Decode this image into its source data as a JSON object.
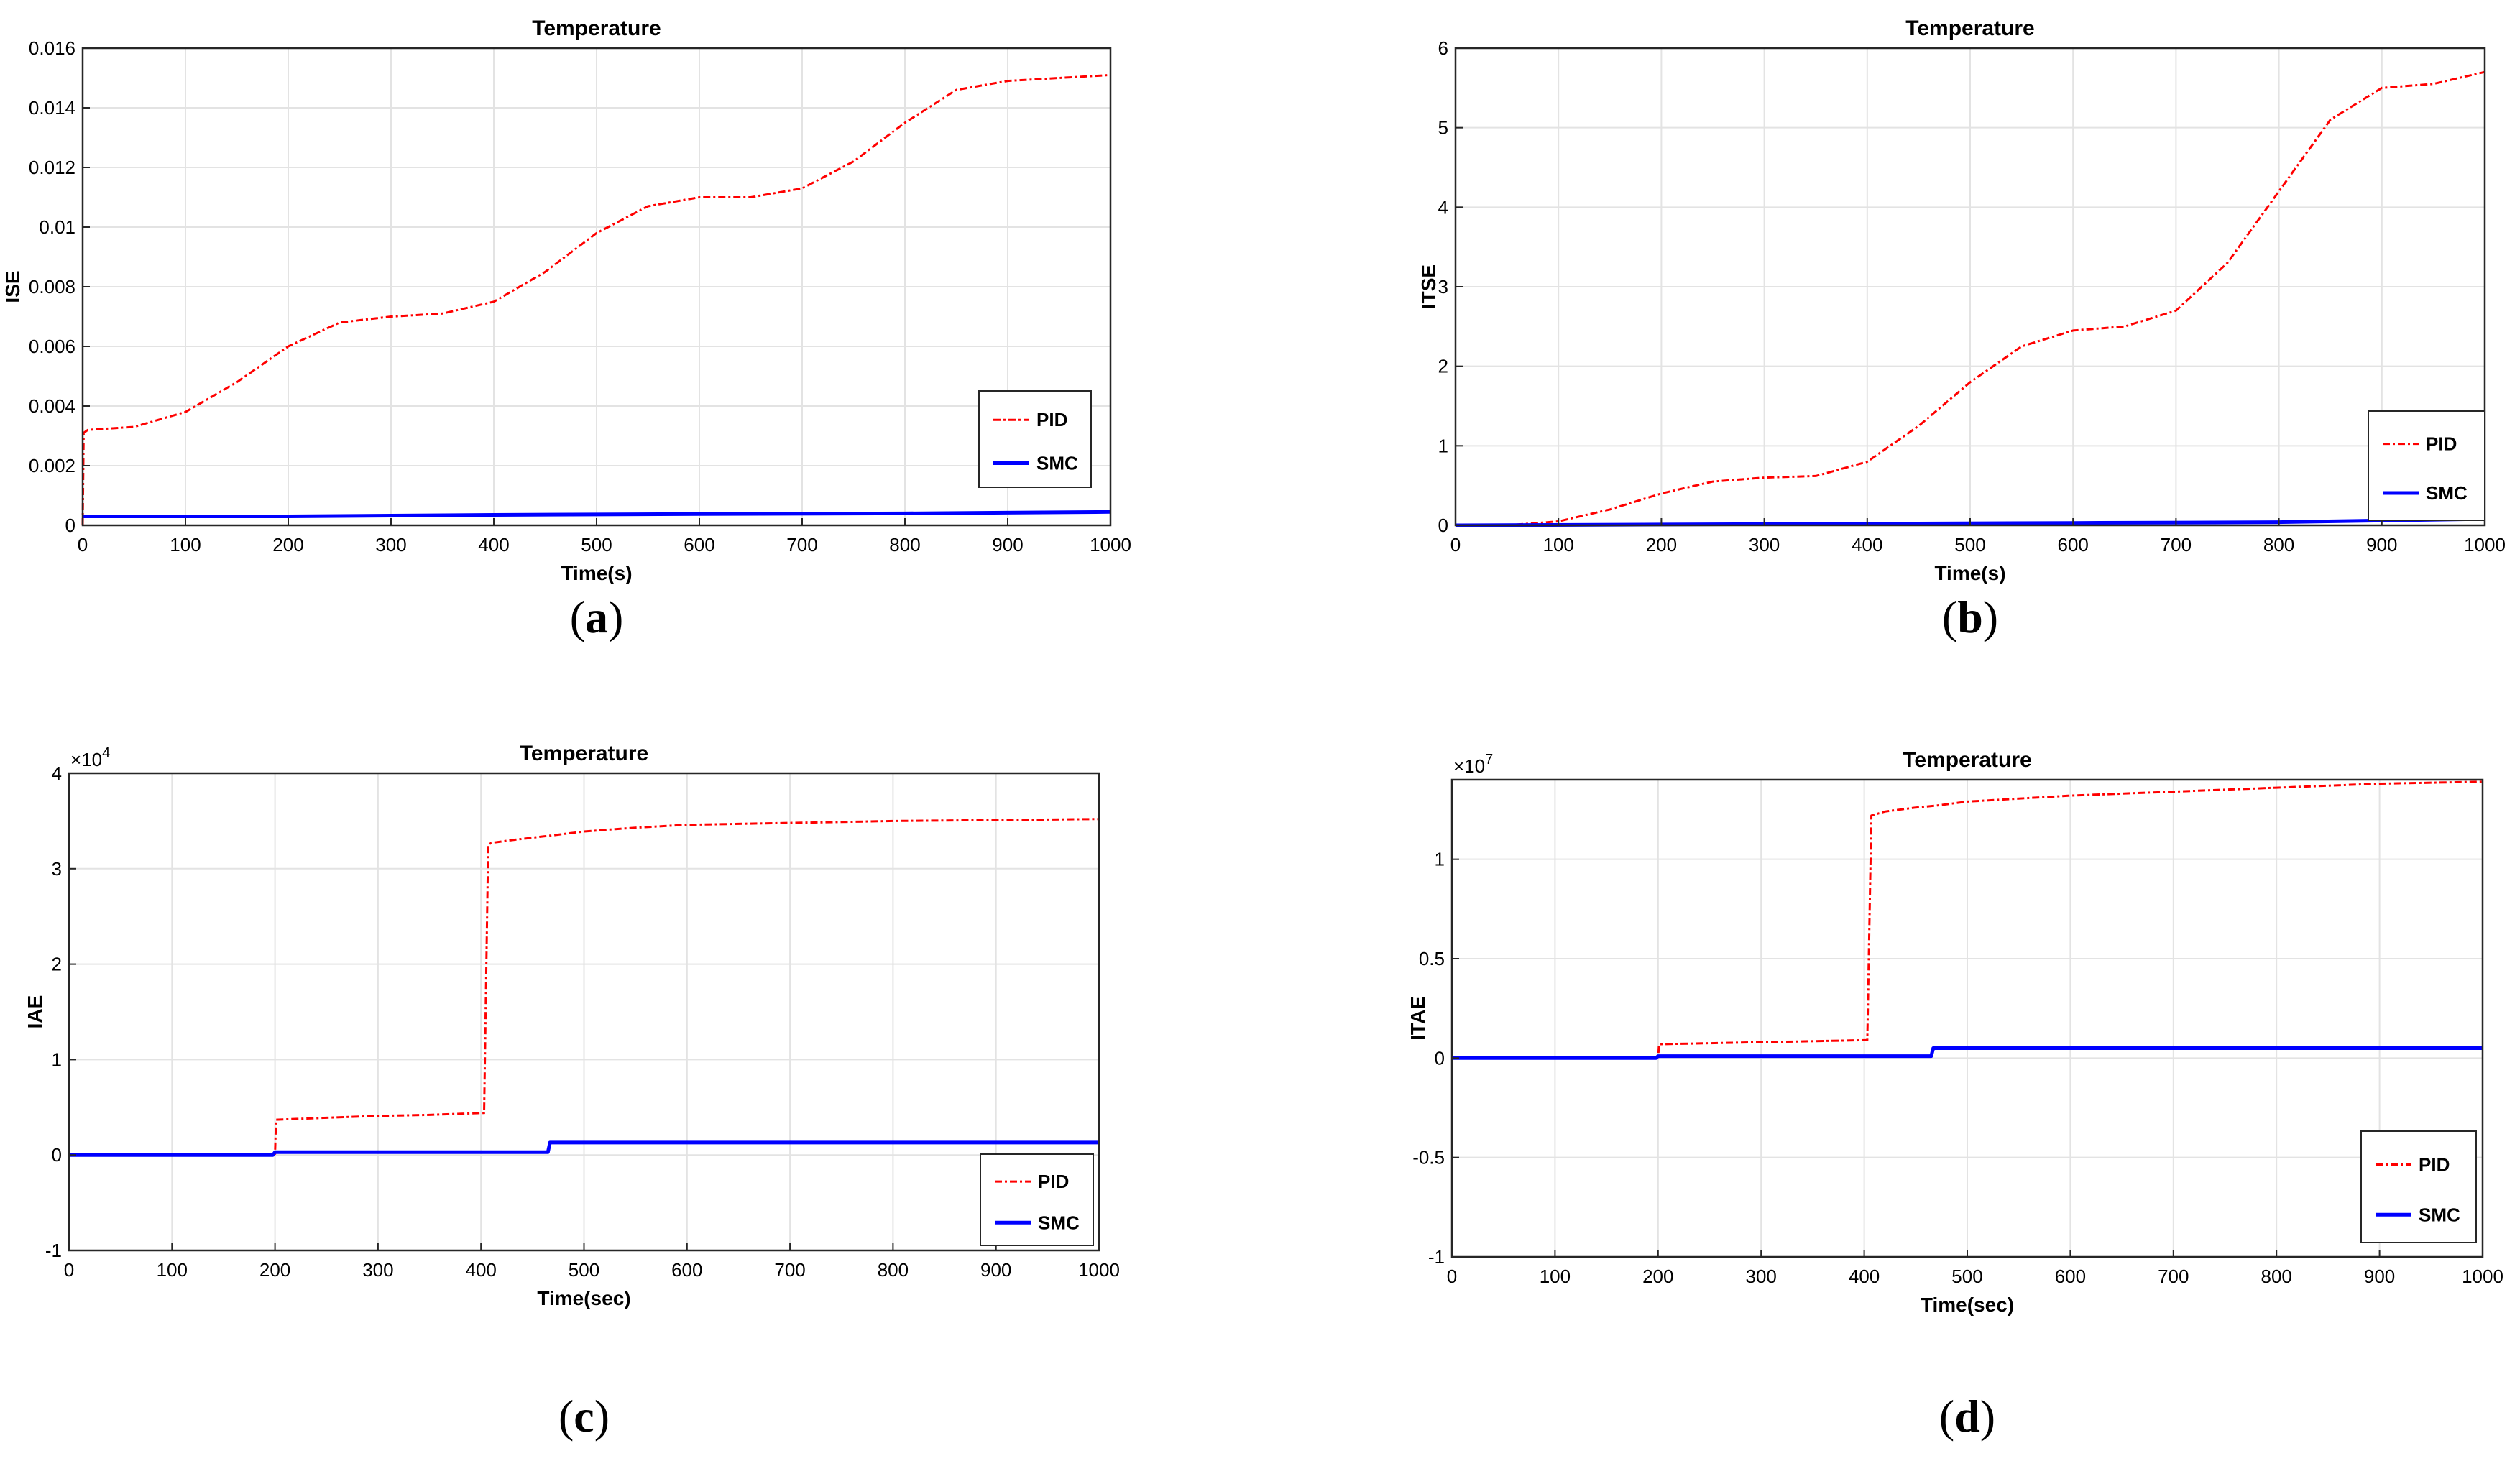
{
  "colors": {
    "pid": "#ff0000",
    "smc": "#0000ff"
  },
  "chart_data": [
    {
      "id": "a",
      "type": "line",
      "caption": "a",
      "title": "Temperature",
      "xlabel": "Time(s)",
      "ylabel": "ISE",
      "xlim": [
        0,
        1000
      ],
      "ylim": [
        0,
        0.016
      ],
      "xticks": [
        0,
        100,
        200,
        300,
        400,
        500,
        600,
        700,
        800,
        900,
        1000
      ],
      "xtick_labels": [
        "0",
        "100",
        "200",
        "300",
        "400",
        "500",
        "600",
        "700",
        "800",
        "900",
        "1000"
      ],
      "yticks": [
        0,
        0.002,
        0.004,
        0.006,
        0.008,
        0.01,
        0.012,
        0.014,
        0.016
      ],
      "ytick_labels": [
        "0",
        "0.002",
        "0.004",
        "0.006",
        "0.008",
        "0.01",
        "0.012",
        "0.014",
        "0.016"
      ],
      "multiplier": "",
      "legend": [
        "PID",
        "SMC"
      ],
      "series": [
        {
          "name": "PID",
          "style": "dashdot",
          "x": [
            0,
            1,
            5,
            50,
            100,
            150,
            200,
            250,
            300,
            350,
            400,
            450,
            500,
            550,
            600,
            650,
            700,
            750,
            800,
            850,
            900,
            950,
            1000
          ],
          "y": [
            0,
            0.0031,
            0.0032,
            0.0033,
            0.0038,
            0.0048,
            0.006,
            0.0068,
            0.007,
            0.0071,
            0.0075,
            0.0085,
            0.0098,
            0.0107,
            0.011,
            0.011,
            0.0113,
            0.0122,
            0.0135,
            0.0146,
            0.0149,
            0.015,
            0.0151
          ]
        },
        {
          "name": "SMC",
          "style": "solid",
          "x": [
            0,
            200,
            400,
            600,
            800,
            1000
          ],
          "y": [
            0.0003,
            0.0003,
            0.00035,
            0.00038,
            0.0004,
            0.00045
          ]
        }
      ]
    },
    {
      "id": "b",
      "type": "line",
      "caption": "b",
      "title": "Temperature",
      "xlabel": "Time(s)",
      "ylabel": "ITSE",
      "xlim": [
        0,
        1000
      ],
      "ylim": [
        0,
        6
      ],
      "xticks": [
        0,
        100,
        200,
        300,
        400,
        500,
        600,
        700,
        800,
        900,
        1000
      ],
      "xtick_labels": [
        "0",
        "100",
        "200",
        "300",
        "400",
        "500",
        "600",
        "700",
        "800",
        "900",
        "1000"
      ],
      "yticks": [
        0,
        1,
        2,
        3,
        4,
        5,
        6
      ],
      "ytick_labels": [
        "0",
        "1",
        "2",
        "3",
        "4",
        "5",
        "6"
      ],
      "multiplier": "",
      "legend": [
        "PID",
        "SMC"
      ],
      "series": [
        {
          "name": "PID",
          "style": "dashdot",
          "x": [
            0,
            50,
            100,
            150,
            200,
            250,
            300,
            350,
            400,
            450,
            500,
            550,
            600,
            650,
            700,
            750,
            800,
            850,
            900,
            950,
            1000
          ],
          "y": [
            0,
            0,
            0.05,
            0.2,
            0.4,
            0.55,
            0.6,
            0.62,
            0.8,
            1.25,
            1.8,
            2.25,
            2.45,
            2.5,
            2.7,
            3.3,
            4.2,
            5.1,
            5.5,
            5.55,
            5.7
          ]
        },
        {
          "name": "SMC",
          "style": "solid",
          "x": [
            0,
            200,
            400,
            600,
            800,
            1000
          ],
          "y": [
            0,
            0.01,
            0.02,
            0.03,
            0.04,
            0.08
          ]
        }
      ]
    },
    {
      "id": "c",
      "type": "line",
      "caption": "c",
      "title": "Temperature",
      "xlabel": "Time(sec)",
      "ylabel": "IAE",
      "xlim": [
        0,
        1000
      ],
      "ylim": [
        -1,
        4
      ],
      "xticks": [
        0,
        100,
        200,
        300,
        400,
        500,
        600,
        700,
        800,
        900,
        1000
      ],
      "xtick_labels": [
        "0",
        "100",
        "200",
        "300",
        "400",
        "500",
        "600",
        "700",
        "800",
        "900",
        "1000"
      ],
      "yticks": [
        -1,
        0,
        1,
        2,
        3,
        4
      ],
      "ytick_labels": [
        "-1",
        "0",
        "1",
        "2",
        "3",
        "4"
      ],
      "multiplier": "×10",
      "multiplier_exp": "4",
      "legend": [
        "PID",
        "SMC"
      ],
      "series": [
        {
          "name": "PID",
          "style": "dashdot",
          "x": [
            0,
            198,
            200,
            201,
            250,
            300,
            350,
            400,
            403,
            407,
            410,
            430,
            470,
            500,
            550,
            600,
            700,
            800,
            900,
            1000
          ],
          "y": [
            0,
            0,
            0,
            0.37,
            0.39,
            0.41,
            0.42,
            0.44,
            0.44,
            3.25,
            3.27,
            3.3,
            3.35,
            3.39,
            3.43,
            3.46,
            3.48,
            3.5,
            3.51,
            3.52
          ]
        },
        {
          "name": "SMC",
          "style": "solid",
          "x": [
            0,
            198,
            200,
            465,
            467,
            1000
          ],
          "y": [
            0,
            0,
            0.03,
            0.03,
            0.13,
            0.13
          ]
        }
      ]
    },
    {
      "id": "d",
      "type": "line",
      "caption": "d",
      "title": "Temperature",
      "xlabel": "Time(sec)",
      "ylabel": "ITAE",
      "xlim": [
        0,
        1000
      ],
      "ylim": [
        -1,
        1.4
      ],
      "xticks": [
        0,
        100,
        200,
        300,
        400,
        500,
        600,
        700,
        800,
        900,
        1000
      ],
      "xtick_labels": [
        "0",
        "100",
        "200",
        "300",
        "400",
        "500",
        "600",
        "700",
        "800",
        "900",
        "1000"
      ],
      "yticks": [
        -1,
        -0.5,
        0,
        0.5,
        1
      ],
      "ytick_labels": [
        "-1",
        "-0.5",
        "0",
        "0.5",
        "1"
      ],
      "multiplier": "×10",
      "multiplier_exp": "7",
      "legend": [
        "PID",
        "SMC"
      ],
      "series": [
        {
          "name": "PID",
          "style": "dashdot",
          "x": [
            0,
            198,
            200,
            201,
            300,
            400,
            403,
            407,
            420,
            450,
            470,
            500,
            600,
            700,
            800,
            900,
            1000
          ],
          "y": [
            0,
            0,
            0,
            0.07,
            0.08,
            0.09,
            0.09,
            1.22,
            1.24,
            1.26,
            1.27,
            1.29,
            1.32,
            1.34,
            1.36,
            1.38,
            1.39
          ]
        },
        {
          "name": "SMC",
          "style": "solid",
          "x": [
            0,
            198,
            200,
            465,
            467,
            1000
          ],
          "y": [
            0,
            0,
            0.01,
            0.01,
            0.05,
            0.05
          ]
        }
      ]
    }
  ]
}
